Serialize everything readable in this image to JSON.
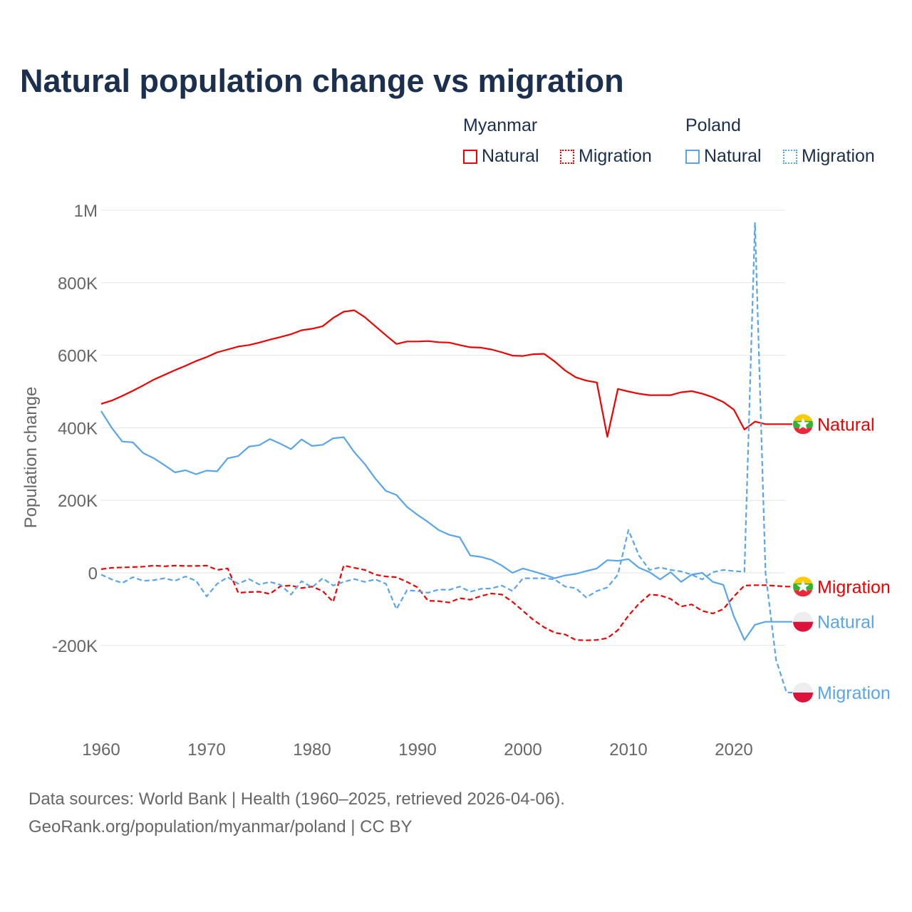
{
  "chart_data": {
    "type": "line",
    "title": "Natural population change vs migration",
    "ylabel": "Population change",
    "xlabel": "",
    "ylim": [
      -400000,
      1000000
    ],
    "xlim": [
      1960,
      2025
    ],
    "grid": true,
    "y_ticks": [
      {
        "v": 1000000,
        "label": "1M"
      },
      {
        "v": 800000,
        "label": "800K"
      },
      {
        "v": 600000,
        "label": "600K"
      },
      {
        "v": 400000,
        "label": "400K"
      },
      {
        "v": 200000,
        "label": "200K"
      },
      {
        "v": 0,
        "label": "0"
      },
      {
        "v": -200000,
        "label": "-200K"
      }
    ],
    "x_ticks": [
      {
        "v": 1960,
        "label": "1960"
      },
      {
        "v": 1970,
        "label": "1970"
      },
      {
        "v": 1980,
        "label": "1980"
      },
      {
        "v": 1990,
        "label": "1990"
      },
      {
        "v": 2000,
        "label": "2000"
      },
      {
        "v": 2010,
        "label": "2010"
      },
      {
        "v": 2020,
        "label": "2020"
      }
    ],
    "legend": {
      "placement": "top-right",
      "groups": [
        {
          "country": "Myanmar",
          "items": [
            "Natural",
            "Migration"
          ]
        },
        {
          "country": "Poland",
          "items": [
            "Natural",
            "Migration"
          ]
        }
      ]
    },
    "x_start": 1960,
    "series": [
      {
        "name": "Myanmar Natural",
        "country": "Myanmar",
        "kind": "Natural",
        "color": "#f00000",
        "dash": false,
        "end_label": "Natural",
        "values": [
          466000,
          475000,
          488000,
          502000,
          517000,
          533000,
          546000,
          559000,
          571000,
          584000,
          595000,
          608000,
          616000,
          624000,
          628000,
          635000,
          643000,
          650000,
          658000,
          669000,
          673000,
          680000,
          703000,
          720000,
          724000,
          705000,
          680000,
          655000,
          631000,
          638000,
          638000,
          639000,
          636000,
          635000,
          628000,
          622000,
          621000,
          616000,
          608000,
          599000,
          598000,
          603000,
          604000,
          583000,
          558000,
          539000,
          530000,
          525000,
          375000,
          507000,
          500000,
          494000,
          490000,
          490000,
          490000,
          498000,
          501000,
          494000,
          484000,
          471000,
          450000,
          395000,
          417000,
          410000,
          410000,
          410000
        ]
      },
      {
        "name": "Myanmar Migration",
        "country": "Myanmar",
        "kind": "Migration",
        "color": "#f00000",
        "dash": true,
        "end_label": "Migration",
        "values": [
          10000,
          14000,
          15000,
          16000,
          17000,
          20000,
          18000,
          20000,
          19000,
          19000,
          20000,
          8000,
          12000,
          -55000,
          -53000,
          -52000,
          -58000,
          -37000,
          -35000,
          -42000,
          -38000,
          -50000,
          -80000,
          20000,
          14000,
          8000,
          -5000,
          -10000,
          -12000,
          -25000,
          -40000,
          -77000,
          -78000,
          -82000,
          -70000,
          -74000,
          -64000,
          -57000,
          -60000,
          -80000,
          -105000,
          -130000,
          -150000,
          -165000,
          -170000,
          -185000,
          -186000,
          -185000,
          -180000,
          -158000,
          -118000,
          -85000,
          -60000,
          -62000,
          -72000,
          -93000,
          -87000,
          -105000,
          -112000,
          -100000,
          -65000,
          -35000,
          -34000,
          -34000,
          -36000,
          -38000
        ]
      },
      {
        "name": "Poland Natural",
        "country": "Poland",
        "kind": "Natural",
        "color": "#5aa5ea",
        "dash": false,
        "end_label": "Natural",
        "values": [
          446000,
          400000,
          362000,
          360000,
          330000,
          316000,
          297000,
          277000,
          283000,
          272000,
          282000,
          280000,
          316000,
          322000,
          348000,
          352000,
          369000,
          356000,
          341000,
          368000,
          350000,
          353000,
          371000,
          374000,
          333000,
          300000,
          260000,
          226000,
          215000,
          182000,
          160000,
          140000,
          118000,
          105000,
          98000,
          48000,
          44000,
          36000,
          20000,
          0,
          12000,
          4000,
          -5000,
          -15000,
          -7000,
          -3000,
          5000,
          12000,
          35000,
          33000,
          38000,
          14000,
          2000,
          -18000,
          2000,
          -25000,
          -5000,
          0,
          -25000,
          -33000,
          -120000,
          -185000,
          -143000,
          -135000,
          -135000,
          -135000
        ]
      },
      {
        "name": "Poland Migration",
        "country": "Poland",
        "kind": "Migration",
        "color": "#5aa5ea",
        "dash": true,
        "end_label": "Migration",
        "values": [
          -5000,
          -18000,
          -28000,
          -12000,
          -22000,
          -20000,
          -15000,
          -22000,
          -10000,
          -22000,
          -65000,
          -30000,
          -12000,
          -30000,
          -17000,
          -32000,
          -25000,
          -33000,
          -60000,
          -23000,
          -40000,
          -15000,
          -35000,
          -25000,
          -17000,
          -25000,
          -18000,
          -30000,
          -100000,
          -48000,
          -50000,
          -55000,
          -46000,
          -47000,
          -38000,
          -52000,
          -44000,
          -43000,
          -35000,
          -50000,
          -15000,
          -15000,
          -15000,
          -18000,
          -38000,
          -42000,
          -68000,
          -50000,
          -40000,
          -5000,
          118000,
          48000,
          8000,
          15000,
          8000,
          4000,
          -5000,
          -18000,
          2000,
          8000,
          5000,
          3000,
          965000,
          0,
          -240000,
          -330000
        ]
      }
    ]
  },
  "footer": {
    "line1": "Data sources: World Bank | Health (1960–2025, retrieved 2026-04-06).",
    "line2": "GeoRank.org/population/myanmar/poland | CC BY"
  }
}
